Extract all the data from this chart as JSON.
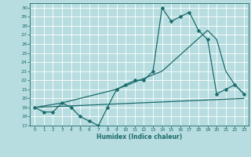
{
  "xlabel": "Humidex (Indice chaleur)",
  "bg_color": "#b8dde0",
  "grid_color": "#ffffff",
  "line_color": "#1a6b6b",
  "xlim": [
    -0.5,
    23.5
  ],
  "ylim": [
    17,
    30.5
  ],
  "yticks": [
    17,
    18,
    19,
    20,
    21,
    22,
    23,
    24,
    25,
    26,
    27,
    28,
    29,
    30
  ],
  "xticks": [
    0,
    1,
    2,
    3,
    4,
    5,
    6,
    7,
    8,
    9,
    10,
    11,
    12,
    13,
    14,
    15,
    16,
    17,
    18,
    19,
    20,
    21,
    22,
    23
  ],
  "line1_x": [
    0,
    1,
    2,
    3,
    4,
    5,
    6,
    7,
    8,
    9,
    10,
    11,
    12,
    13,
    14,
    15,
    16,
    17,
    18,
    19,
    20,
    21,
    22,
    23
  ],
  "line1_y": [
    19,
    18.5,
    18.5,
    19.5,
    19,
    18,
    17.5,
    17,
    19,
    21,
    21.5,
    22,
    22,
    23,
    30,
    28.5,
    29,
    29.5,
    27.5,
    26.5,
    20.5,
    21,
    21.5,
    20.5
  ],
  "line2_x": [
    0,
    3,
    9,
    14,
    19,
    20,
    21,
    22,
    23
  ],
  "line2_y": [
    19,
    19.5,
    21,
    23,
    27.5,
    26.5,
    23,
    21.5,
    20.5
  ],
  "line3_x": [
    0,
    23
  ],
  "line3_y": [
    19,
    20
  ],
  "markersize": 2.5,
  "linewidth": 0.9
}
